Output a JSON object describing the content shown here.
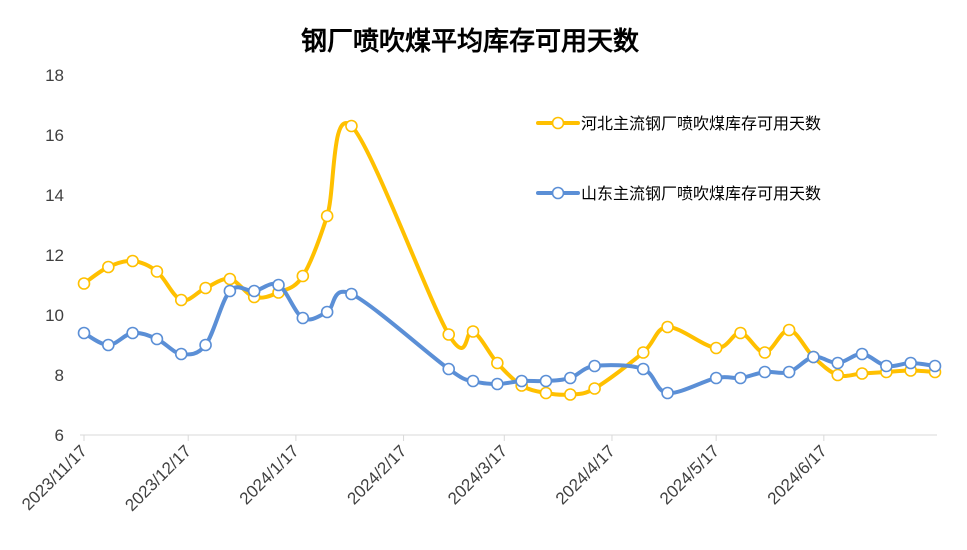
{
  "chart_data": {
    "type": "line",
    "title": "钢厂喷吹煤平均库存可用天数",
    "xlabel": "",
    "ylabel": "",
    "ylim": [
      6,
      18
    ],
    "yticks": [
      "6",
      "8",
      "10",
      "12",
      "14",
      "16",
      "18"
    ],
    "xticks": [
      "2023/11/17",
      "2023/12/17",
      "2024/1/17",
      "2024/2/17",
      "2024/3/17",
      "2024/4/17",
      "2024/5/17",
      "2024/6/17"
    ],
    "legend_position": "right",
    "grid": false,
    "x": [
      "2023/11/17",
      "2023/11/24",
      "2023/12/1",
      "2023/12/8",
      "2023/12/15",
      "2023/12/22",
      "2023/12/29",
      "2024/1/5",
      "2024/1/12",
      "2024/1/19",
      "2024/1/26",
      "2024/2/2",
      "2024/3/1",
      "2024/3/8",
      "2024/3/15",
      "2024/3/22",
      "2024/3/29",
      "2024/4/5",
      "2024/4/12",
      "2024/4/26",
      "2024/5/3",
      "2024/5/17",
      "2024/5/24",
      "2024/5/31",
      "2024/6/7",
      "2024/6/14",
      "2024/6/21",
      "2024/6/28",
      "2024/7/5",
      "2024/7/12",
      "2024/7/19"
    ],
    "series": [
      {
        "name": "河北主流钢厂喷吹煤库存可用天数",
        "color": "#FFC000",
        "values": [
          11.05,
          11.6,
          11.8,
          11.45,
          10.5,
          10.9,
          11.2,
          10.6,
          10.75,
          11.3,
          13.3,
          16.3,
          9.35,
          9.45,
          8.4,
          7.65,
          7.4,
          7.35,
          7.55,
          8.75,
          9.6,
          8.9,
          9.4,
          8.75,
          9.5,
          8.6,
          8.0,
          8.05,
          8.1,
          8.15,
          8.1
        ]
      },
      {
        "name": "山东主流钢厂喷吹煤库存可用天数",
        "color": "#5B8FD6",
        "values": [
          9.4,
          9.0,
          9.4,
          9.2,
          8.7,
          9.0,
          10.8,
          10.8,
          11.0,
          9.9,
          10.1,
          10.7,
          8.2,
          7.8,
          7.7,
          7.8,
          7.8,
          7.9,
          8.3,
          8.2,
          7.4,
          7.9,
          7.9,
          8.1,
          8.1,
          8.6,
          8.4,
          8.7,
          8.3,
          8.4,
          8.3
        ]
      }
    ]
  }
}
